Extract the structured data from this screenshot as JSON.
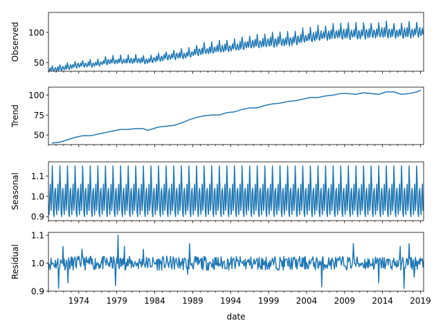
{
  "chart_data": {
    "type": "line",
    "title": "",
    "xlabel": "date",
    "series_color": "#1f77b4",
    "x_range": [
      "1970-01",
      "2019-06"
    ],
    "x_ticks": [
      "1974",
      "1979",
      "1984",
      "1989",
      "1994",
      "1999",
      "2004",
      "2009",
      "2014",
      "2019"
    ],
    "panels": [
      {
        "name": "observed",
        "ylabel": "Observed",
        "ylim": [
          36,
          133
        ],
        "yticks": [
          "50",
          "100"
        ],
        "yticks_values": [
          50,
          100
        ],
        "components": {
          "trend_points": [
            [
              1970.0,
              39
            ],
            [
              1972.0,
              42
            ],
            [
              1974.0,
              47
            ],
            [
              1976.0,
              48
            ],
            [
              1978.0,
              53
            ],
            [
              1980.0,
              54
            ],
            [
              1982.0,
              55
            ],
            [
              1983.0,
              53
            ],
            [
              1984.0,
              57
            ],
            [
              1986.0,
              61
            ],
            [
              1988.0,
              64
            ],
            [
              1990.0,
              70
            ],
            [
              1992.0,
              74
            ],
            [
              1994.0,
              76
            ],
            [
              1996.0,
              81
            ],
            [
              1998.0,
              84
            ],
            [
              2000.0,
              86
            ],
            [
              2002.0,
              88
            ],
            [
              2004.0,
              93
            ],
            [
              2006.0,
              97
            ],
            [
              2008.0,
              99
            ],
            [
              2010.0,
              100
            ],
            [
              2012.0,
              100
            ],
            [
              2014.0,
              102
            ],
            [
              2016.0,
              101
            ],
            [
              2018.0,
              102
            ],
            [
              2019.5,
              103
            ]
          ],
          "seasonal_amplitude": 0.14,
          "noise": 0.02
        }
      },
      {
        "name": "trend",
        "ylabel": "Trend",
        "ylim": [
          38,
          110
        ],
        "yticks": [
          "50",
          "75",
          "100"
        ],
        "yticks_values": [
          50,
          75,
          100
        ],
        "points": [
          [
            1970.5,
            40
          ],
          [
            1971.5,
            41
          ],
          [
            1972.5,
            44
          ],
          [
            1973.5,
            47
          ],
          [
            1974.5,
            49
          ],
          [
            1975.5,
            49
          ],
          [
            1976.5,
            51
          ],
          [
            1977.5,
            53
          ],
          [
            1978.5,
            55
          ],
          [
            1979.5,
            57
          ],
          [
            1980.5,
            57
          ],
          [
            1981.5,
            58
          ],
          [
            1982.5,
            58
          ],
          [
            1983.0,
            56
          ],
          [
            1983.5,
            57
          ],
          [
            1984.5,
            60
          ],
          [
            1985.5,
            61
          ],
          [
            1986.5,
            62
          ],
          [
            1987.5,
            65
          ],
          [
            1988.5,
            69
          ],
          [
            1989.5,
            72
          ],
          [
            1990.5,
            74
          ],
          [
            1991.5,
            75
          ],
          [
            1992.5,
            75
          ],
          [
            1993.5,
            78
          ],
          [
            1994.5,
            79
          ],
          [
            1995.5,
            82
          ],
          [
            1996.5,
            84
          ],
          [
            1997.5,
            84
          ],
          [
            1998.5,
            87
          ],
          [
            1999.5,
            89
          ],
          [
            2000.5,
            90
          ],
          [
            2001.5,
            92
          ],
          [
            2002.5,
            93
          ],
          [
            2003.5,
            95
          ],
          [
            2004.5,
            97
          ],
          [
            2005.5,
            97
          ],
          [
            2006.5,
            99
          ],
          [
            2007.5,
            100
          ],
          [
            2008.5,
            102
          ],
          [
            2009.5,
            102
          ],
          [
            2010.5,
            101
          ],
          [
            2011.5,
            103
          ],
          [
            2012.5,
            102
          ],
          [
            2013.5,
            101
          ],
          [
            2014.5,
            104
          ],
          [
            2015.5,
            104
          ],
          [
            2016.5,
            101
          ],
          [
            2017.5,
            102
          ],
          [
            2018.5,
            104
          ],
          [
            2019.0,
            106
          ]
        ]
      },
      {
        "name": "seasonal",
        "ylabel": "Seasonal",
        "ylim": [
          0.88,
          1.17
        ],
        "yticks": [
          "0.9",
          "1.0",
          "1.1"
        ],
        "yticks_values": [
          0.9,
          1.0,
          1.1
        ],
        "monthly_factors": [
          0.95,
          0.91,
          1.0,
          1.06,
          0.93,
          0.97,
          1.15,
          1.05,
          0.92,
          0.9,
          1.02,
          1.04
        ]
      },
      {
        "name": "residual",
        "ylabel": "Residual",
        "ylim": [
          0.9,
          1.11
        ],
        "yticks": [
          "0.9",
          "1.0",
          "1.1"
        ],
        "yticks_values": [
          0.9,
          1.0,
          1.1
        ],
        "baseline": 1.0,
        "spread": 0.025,
        "spikes": [
          [
            1971.3,
            0.91
          ],
          [
            1971.9,
            1.06
          ],
          [
            1972.6,
            0.93
          ],
          [
            1974.4,
            1.05
          ],
          [
            1978.8,
            0.92
          ],
          [
            1979.2,
            1.1
          ],
          [
            1980.0,
            1.06
          ],
          [
            1982.5,
            1.05
          ],
          [
            1988.6,
            1.07
          ],
          [
            1988.3,
            0.96
          ],
          [
            2006.0,
            0.915
          ],
          [
            2010.2,
            1.07
          ],
          [
            2013.5,
            0.93
          ],
          [
            2016.3,
            1.06
          ],
          [
            2016.8,
            0.91
          ],
          [
            2017.5,
            1.07
          ],
          [
            2018.2,
            0.95
          ]
        ]
      }
    ]
  }
}
